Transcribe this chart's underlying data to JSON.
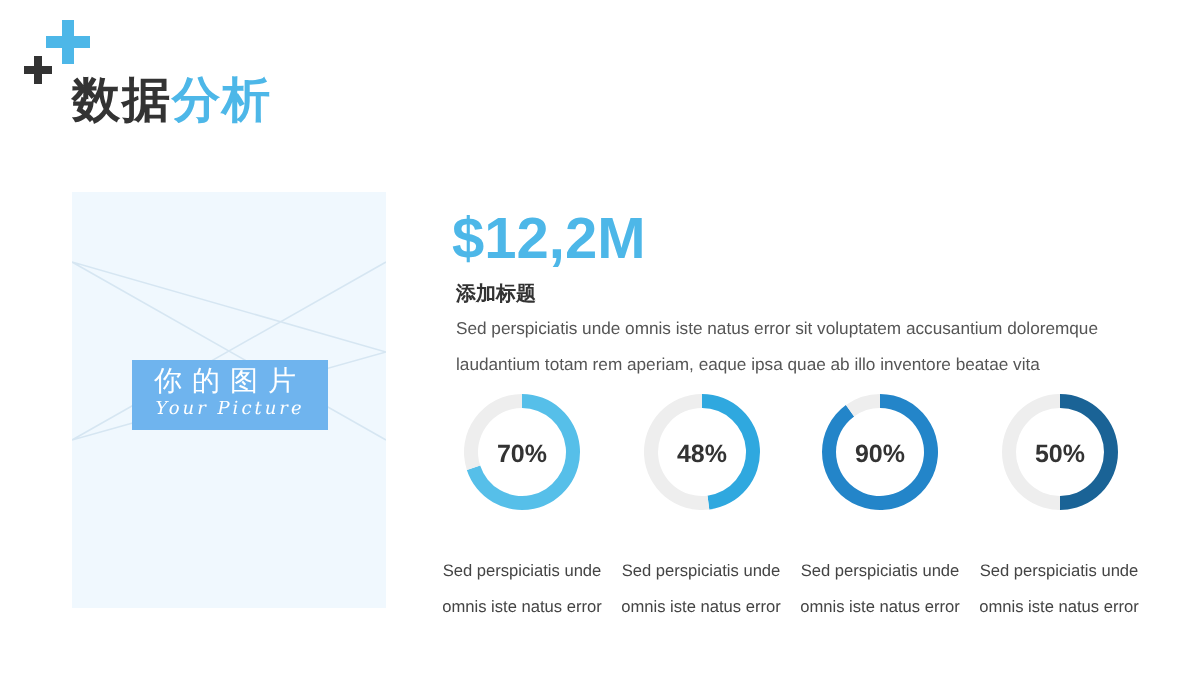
{
  "chart_data": [
    {
      "type": "other",
      "title": "数据分析",
      "annotations": [
        "$12,2M",
        "添加标题",
        "Sed perspiciatis unde omnis iste natus error sit voluptatem accusantium doloremque laudantium totam rem aperiam, eaque ipsa quae ab illo inventore beatae vita",
        "你的图片",
        "Your Picture"
      ]
    },
    {
      "type": "donut",
      "categories": [
        null,
        null
      ],
      "values": [
        70,
        30
      ],
      "colors": [
        "#56bfe9",
        "#eeeeee"
      ],
      "value_labels": [
        "70%",
        null
      ],
      "annotations": [
        "Sed perspiciatis unde omnis iste natus error"
      ]
    },
    {
      "type": "donut",
      "categories": [
        null,
        null
      ],
      "values": [
        48,
        52
      ],
      "colors": [
        "#2fa8df",
        "#eeeeee"
      ],
      "value_labels": [
        "48%",
        null
      ],
      "annotations": [
        "Sed perspiciatis unde omnis iste natus error"
      ]
    },
    {
      "type": "donut",
      "categories": [
        null,
        null
      ],
      "values": [
        90,
        10
      ],
      "colors": [
        "#2385c9",
        "#eeeeee"
      ],
      "value_labels": [
        "90%",
        null
      ],
      "annotations": [
        "Sed perspiciatis unde omnis iste natus error"
      ]
    },
    {
      "type": "donut",
      "categories": [
        null,
        null
      ],
      "values": [
        50,
        50
      ],
      "colors": [
        "#1a6396",
        "#eeeeee"
      ],
      "value_labels": [
        "50%",
        null
      ],
      "annotations": [
        "Sed perspiciatis unde omnis iste natus error"
      ]
    }
  ]
}
